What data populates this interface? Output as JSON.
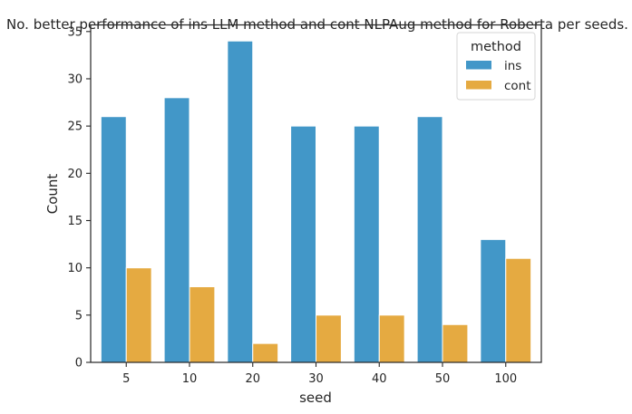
{
  "chart_data": {
    "type": "bar",
    "title": "No. better performance of ins LLM method and cont NLPAug method for Roberta per seeds.",
    "xlabel": "seed",
    "ylabel": "Count",
    "categories": [
      "5",
      "10",
      "20",
      "30",
      "40",
      "50",
      "100"
    ],
    "series": [
      {
        "name": "ins",
        "values": [
          26,
          28,
          34,
          25,
          25,
          26,
          13
        ],
        "color": "#4297c8"
      },
      {
        "name": "cont",
        "values": [
          10,
          8,
          2,
          5,
          5,
          4,
          11
        ],
        "color": "#e5aa41"
      }
    ],
    "ylim": [
      0,
      35.7
    ],
    "yticks": [
      0,
      5,
      10,
      15,
      20,
      25,
      30,
      35
    ],
    "grid": false,
    "legend": {
      "title": "method",
      "position": "top-right"
    }
  }
}
